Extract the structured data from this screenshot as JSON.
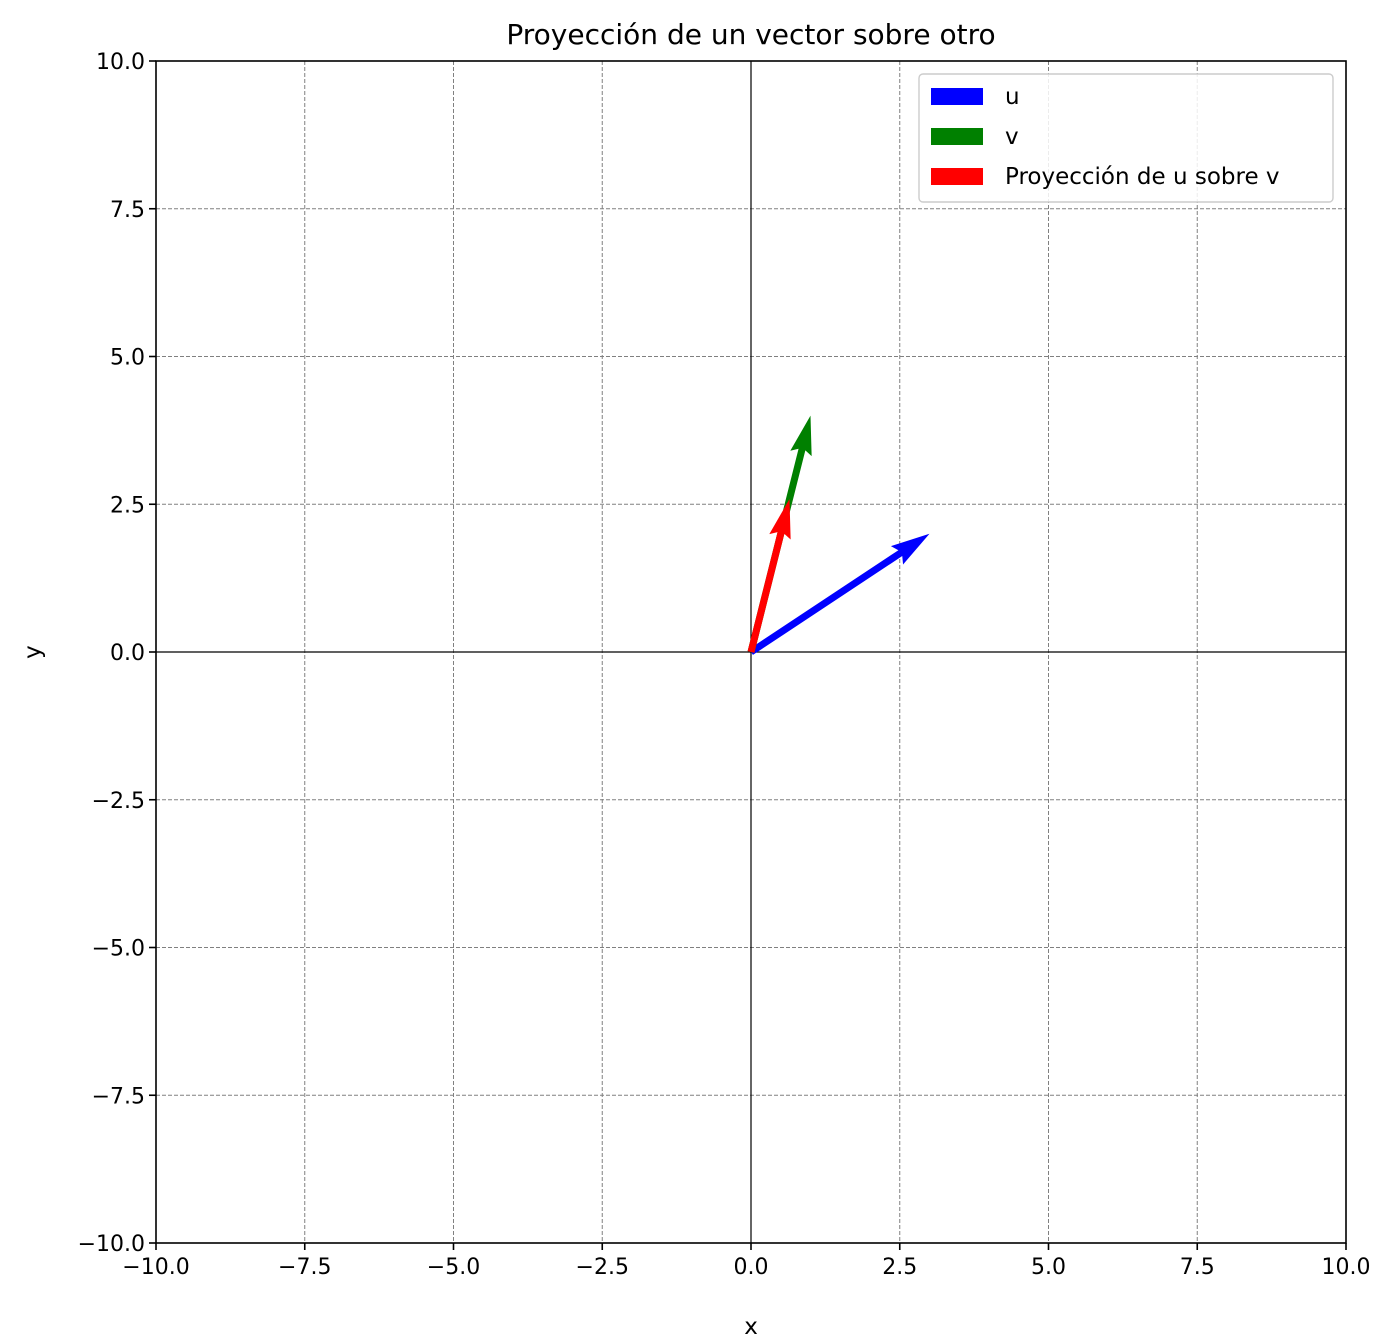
{
  "chart_data": {
    "type": "vector",
    "title": "Proyección de un vector sobre otro",
    "xlabel": "x",
    "ylabel": "y",
    "xlim": [
      -10,
      10
    ],
    "ylim": [
      -10,
      10
    ],
    "xticks": [
      -10,
      -7.5,
      -5,
      -2.5,
      0,
      2.5,
      5,
      7.5,
      10
    ],
    "yticks": [
      -10,
      -7.5,
      -5,
      -2.5,
      0,
      2.5,
      5,
      7.5,
      10
    ],
    "xtick_labels": [
      "−10.0",
      "−7.5",
      "−5.0",
      "−2.5",
      "0.0",
      "2.5",
      "5.0",
      "7.5",
      "10.0"
    ],
    "ytick_labels": [
      "−10.0",
      "−7.5",
      "−5.0",
      "−2.5",
      "0.0",
      "2.5",
      "5.0",
      "7.5",
      "10.0"
    ],
    "grid": true,
    "legend_position": "upper right",
    "series": [
      {
        "name": "u",
        "color": "#0000ff",
        "origin": [
          0,
          0
        ],
        "vector": [
          3,
          2
        ]
      },
      {
        "name": "v",
        "color": "#008000",
        "origin": [
          0,
          0
        ],
        "vector": [
          1,
          4
        ]
      },
      {
        "name": "Proyección de u sobre v",
        "color": "#ff0000",
        "origin": [
          0,
          0
        ],
        "vector": [
          0.647,
          2.588
        ]
      }
    ]
  }
}
